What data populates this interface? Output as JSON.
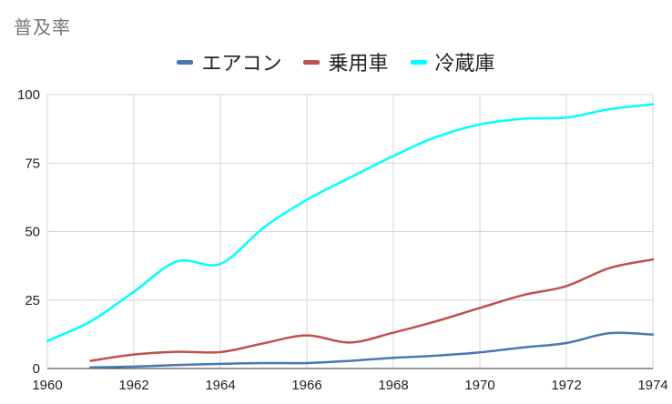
{
  "chart_data": {
    "type": "line",
    "title": "普及率",
    "xlabel": "",
    "ylabel": "",
    "x": [
      1960,
      1961,
      1962,
      1963,
      1964,
      1965,
      1966,
      1967,
      1968,
      1969,
      1970,
      1971,
      1972,
      1973,
      1974
    ],
    "xlim": [
      1960,
      1974
    ],
    "ylim": [
      0,
      100
    ],
    "xticks": [
      "1960",
      "1962",
      "1964",
      "1966",
      "1968",
      "1970",
      "1972",
      "1974"
    ],
    "yticks": [
      "0",
      "25",
      "50",
      "75",
      "100"
    ],
    "grid": true,
    "legend_position": "top",
    "series": [
      {
        "name": "エアコン",
        "color": "#4a77b4",
        "values": [
          null,
          0.4,
          0.7,
          1.3,
          1.7,
          2.0,
          2.0,
          2.8,
          3.9,
          4.7,
          5.9,
          7.7,
          9.3,
          12.9,
          12.4
        ]
      },
      {
        "name": "乗用車",
        "color": "#c0504d",
        "values": [
          null,
          2.8,
          5.1,
          6.1,
          6.0,
          9.2,
          12.1,
          9.5,
          13.1,
          17.3,
          22.1,
          26.8,
          30.1,
          36.7,
          39.8
        ]
      },
      {
        "name": "冷蔵庫",
        "color": "#00ffff",
        "values": [
          10.1,
          17.2,
          28.0,
          39.1,
          38.2,
          51.4,
          61.6,
          69.7,
          77.6,
          84.6,
          89.1,
          91.2,
          91.6,
          94.7,
          96.5
        ]
      }
    ]
  }
}
